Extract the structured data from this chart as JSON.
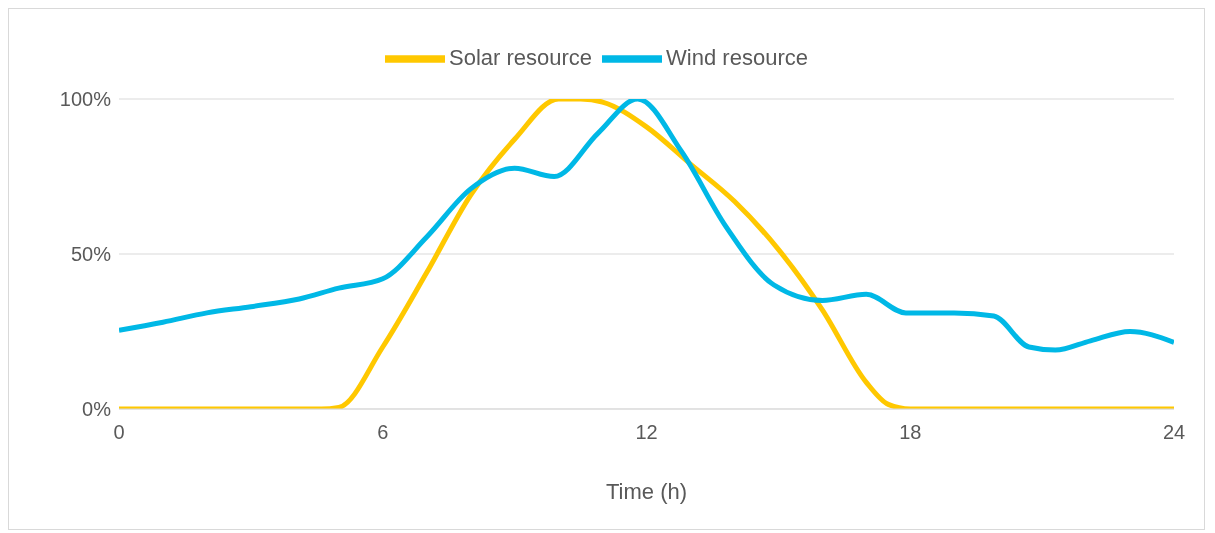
{
  "chart_data": {
    "type": "line",
    "xlabel": "Time (h)",
    "xlim": [
      0,
      24
    ],
    "xticks": [
      0,
      6,
      12,
      18,
      24
    ],
    "ylim": [
      0,
      100
    ],
    "yticks": [
      {
        "value": 0,
        "label": "0%"
      },
      {
        "value": 50,
        "label": "50%"
      },
      {
        "value": 100,
        "label": "100%"
      }
    ],
    "grid": "y",
    "legend": "top",
    "marker": "none",
    "line_style": "solid",
    "series": [
      {
        "name": "Solar resource",
        "color": "#ffc800",
        "x": [
          0,
          2,
          4,
          4.6,
          5,
          6,
          7,
          8,
          9,
          10,
          10.5,
          11,
          12,
          13,
          14,
          15,
          16,
          17,
          17.5,
          18,
          20,
          22,
          24
        ],
        "values": [
          0,
          0,
          0,
          0,
          0.5,
          20,
          44,
          69,
          87,
          100,
          100,
          99,
          91,
          79,
          67,
          51.5,
          32,
          8.6,
          1.5,
          0,
          0,
          0,
          0
        ]
      },
      {
        "name": "Wind resource",
        "color": "#00b8e6",
        "x": [
          0,
          1,
          2,
          3,
          4.1,
          5,
          6,
          7,
          8,
          9,
          9.9,
          10.9,
          11.8,
          12.8,
          13.8,
          14.9,
          16,
          17,
          17.9,
          19,
          19.9,
          20.7,
          21.3,
          22.1,
          23,
          24
        ],
        "values": [
          25.4,
          28,
          31,
          33,
          35.5,
          39,
          42,
          55.5,
          71,
          77.7,
          75,
          89,
          100,
          83,
          59,
          40,
          35,
          37,
          31,
          31,
          30,
          20,
          19,
          22,
          25,
          21.5
        ]
      }
    ]
  }
}
